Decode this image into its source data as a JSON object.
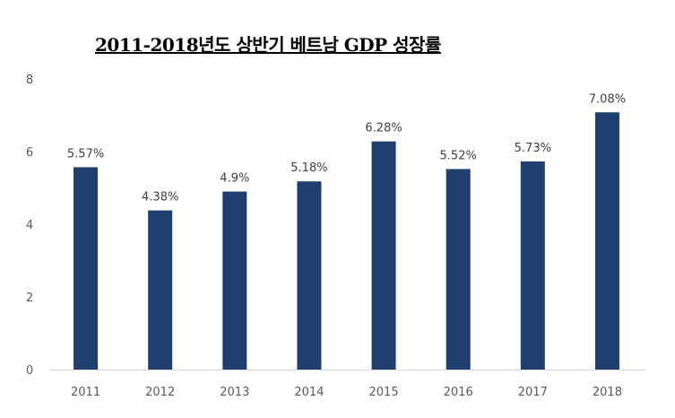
{
  "chart_data": {
    "type": "bar",
    "title": "2011-2018년도 상반기 베트남 GDP 성장률",
    "xlabel": "",
    "ylabel": "",
    "categories": [
      "2011",
      "2012",
      "2013",
      "2014",
      "2015",
      "2016",
      "2017",
      "2018"
    ],
    "values": [
      5.57,
      4.38,
      4.9,
      5.18,
      6.28,
      5.52,
      5.73,
      7.08
    ],
    "data_labels": [
      "5.57%",
      "4.38%",
      "4.9%",
      "5.18%",
      "6.28%",
      "5.52%",
      "5.73%",
      "7.08%"
    ],
    "ylim": [
      0,
      8
    ],
    "yticks": [
      "0",
      "2",
      "4",
      "6",
      "8"
    ],
    "grid": false,
    "bar_color": "#1f3f6e",
    "axis_color": "#d9d9d9"
  }
}
